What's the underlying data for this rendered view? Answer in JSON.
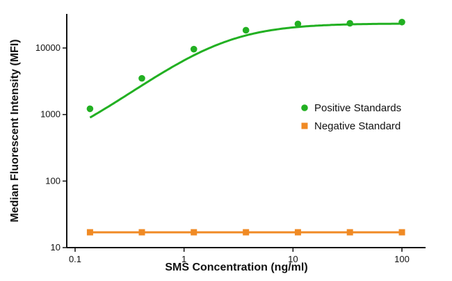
{
  "chart_data": {
    "type": "line",
    "title": "",
    "xlabel": "SMS Concentration (ng/ml)",
    "ylabel": "Median Fluorescent Intensity (MFI)",
    "x_scale": "log",
    "y_scale": "log",
    "xlim": [
      0.1,
      100
    ],
    "ylim": [
      10,
      30000
    ],
    "x_ticks": [
      0.1,
      1,
      10,
      100
    ],
    "x_tick_labels": [
      "0.1",
      "1",
      "10",
      "100"
    ],
    "y_ticks": [
      10,
      100,
      1000,
      10000
    ],
    "y_tick_labels": [
      "10",
      "100",
      "1000",
      "10000"
    ],
    "grid": false,
    "legend_position": "right",
    "series": [
      {
        "name": "Positive Standards",
        "color": "#22b022",
        "marker": "circle",
        "x": [
          0.137,
          0.41,
          1.23,
          3.7,
          11.1,
          33.3,
          100
        ],
        "y": [
          1220,
          3500,
          9600,
          18500,
          23000,
          23500,
          24500
        ],
        "fit_curve": true
      },
      {
        "name": "Negative Standard",
        "color": "#f08a24",
        "marker": "square",
        "x": [
          0.137,
          0.41,
          1.23,
          3.7,
          11.1,
          33.3,
          100
        ],
        "y": [
          17,
          17,
          17,
          17,
          17,
          17,
          17
        ],
        "fit_curve": false
      }
    ]
  }
}
